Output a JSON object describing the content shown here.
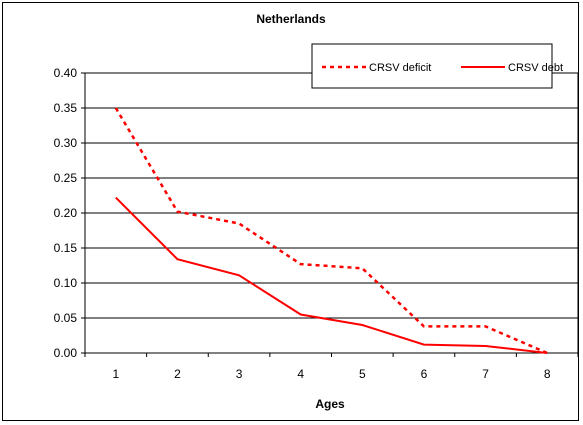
{
  "chart_data": {
    "type": "line",
    "title": "Netherlands",
    "xlabel": "Ages",
    "ylabel": "",
    "categories": [
      "1",
      "2",
      "3",
      "4",
      "5",
      "6",
      "7",
      "8"
    ],
    "ylim": [
      0,
      0.4
    ],
    "yticks": [
      "0.00",
      "0.05",
      "0.10",
      "0.15",
      "0.20",
      "0.25",
      "0.30",
      "0.35",
      "0.40"
    ],
    "grid": "horizontal",
    "legend_position": "top-right",
    "series": [
      {
        "name": "CRSV deficit",
        "style": "dotted",
        "color": "#ff0000",
        "values": [
          0.35,
          0.202,
          0.185,
          0.127,
          0.121,
          0.038,
          0.038,
          0.0
        ]
      },
      {
        "name": "CRSV debt",
        "style": "solid",
        "color": "#ff0000",
        "values": [
          0.222,
          0.134,
          0.111,
          0.055,
          0.04,
          0.012,
          0.01,
          0.0
        ]
      }
    ]
  }
}
